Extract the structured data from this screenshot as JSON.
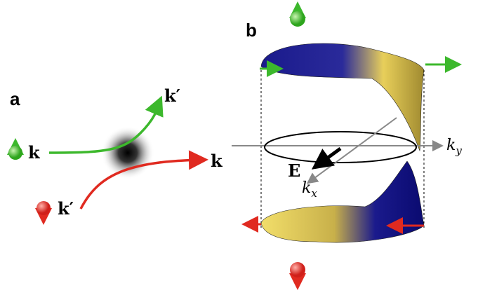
{
  "panel_a": {
    "label": "a",
    "labels": {
      "out_green": "k′",
      "in_green": "k",
      "out_red": "k",
      "in_red": "k′"
    }
  },
  "panel_b": {
    "label": "b",
    "field": "E",
    "kx": {
      "main": "k",
      "sub": "x"
    },
    "ky": {
      "main": "k",
      "sub": "y"
    }
  }
}
